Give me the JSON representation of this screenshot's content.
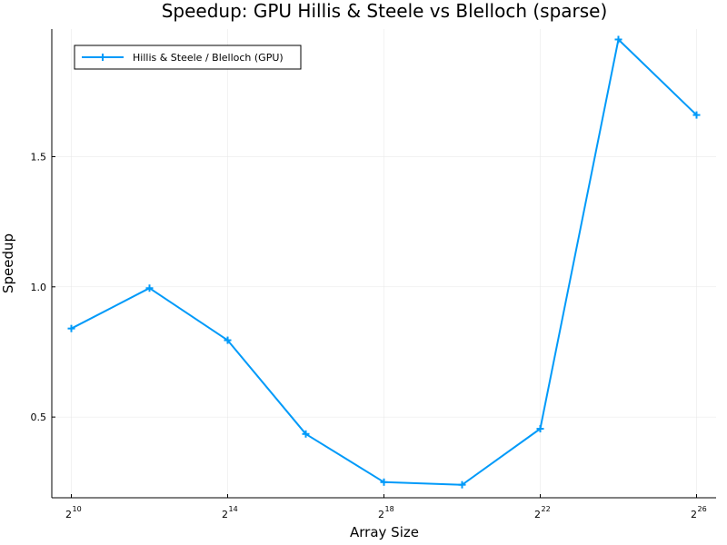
{
  "chart_data": {
    "type": "line",
    "title": "Speedup: GPU Hillis & Steele vs Blelloch (sparse)",
    "xlabel": "Array Size",
    "ylabel": "Speedup",
    "x_scale": "log2",
    "x_tick_base": "2",
    "x_ticks": [
      {
        "value": 1024,
        "exp": "10"
      },
      {
        "value": 16384,
        "exp": "14"
      },
      {
        "value": 262144,
        "exp": "18"
      },
      {
        "value": 4194304,
        "exp": "22"
      },
      {
        "value": 67108864,
        "exp": "26"
      }
    ],
    "y_ticks": [
      {
        "value": 0.5,
        "label": "0.5"
      },
      {
        "value": 1.0,
        "label": "1.0"
      },
      {
        "value": 1.5,
        "label": "1.5"
      }
    ],
    "ylim": [
      0.19,
      1.99
    ],
    "xlim": [
      724,
      94906266
    ],
    "grid": true,
    "legend_position": "top-left",
    "series": [
      {
        "name": "Hillis & Steele / Blelloch (GPU)",
        "color": "#009af9",
        "marker": "cross",
        "x": [
          1024,
          4096,
          16384,
          65536,
          262144,
          1048576,
          4194304,
          16777216,
          67108864
        ],
        "y": [
          0.84,
          0.995,
          0.795,
          0.435,
          0.25,
          0.24,
          0.455,
          1.95,
          1.66
        ]
      }
    ]
  }
}
